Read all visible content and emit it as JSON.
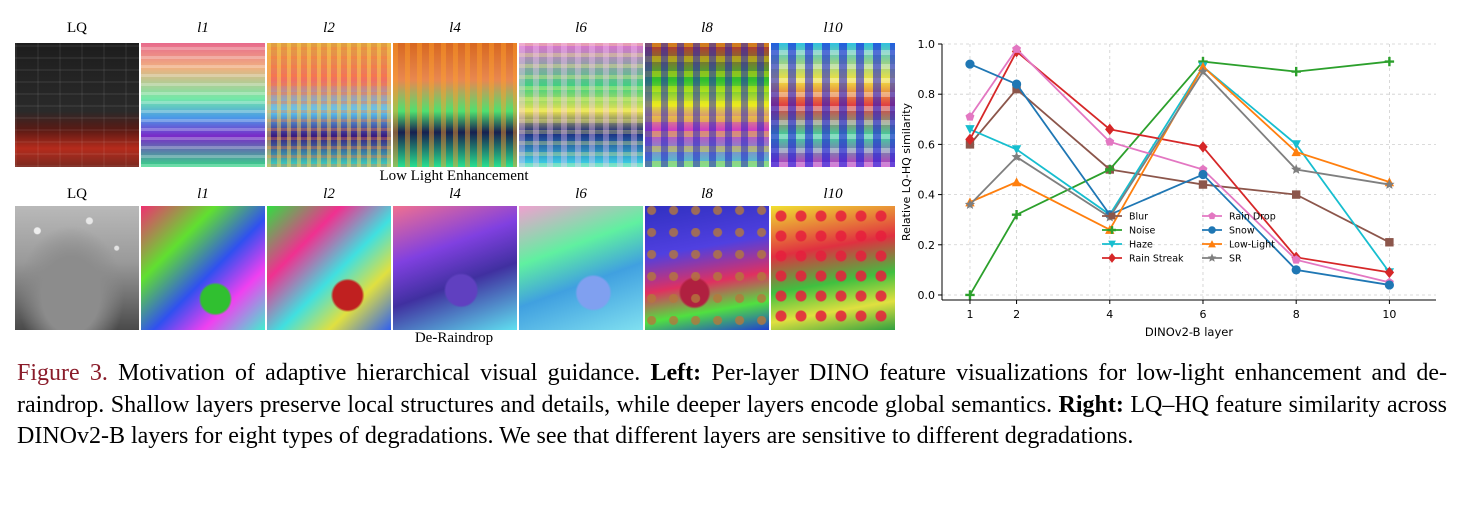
{
  "figure": {
    "rows": [
      {
        "column_labels": [
          "LQ",
          "l1",
          "l2",
          "l4",
          "l6",
          "l8",
          "l10"
        ],
        "task_label": "Low Light Enhancement"
      },
      {
        "column_labels": [
          "LQ",
          "l1",
          "l2",
          "l4",
          "l6",
          "l8",
          "l10"
        ],
        "task_label": "De-Raindrop"
      }
    ],
    "caption": {
      "figure_number": "Figure 3.",
      "text_1": " Motivation of adaptive hierarchical visual guidance. ",
      "left_label": "Left:",
      "text_2": " Per-layer DINO feature visualizations for low-light enhancement and de-raindrop. Shallow layers preserve local structures and details, while deeper layers encode global semantics. ",
      "right_label": "Right:",
      "text_3": " LQ–HQ feature similarity across DINOv2-B layers for eight types of degradations. We see that different layers are sensitive to different degradations."
    }
  },
  "chart_data": {
    "type": "line",
    "title": "",
    "xlabel": "DINOv2-B layer",
    "ylabel": "Relative LQ-HQ similarity",
    "x": [
      1,
      2,
      4,
      6,
      8,
      10
    ],
    "xlim": [
      0.4,
      11.0
    ],
    "ylim": [
      -0.02,
      1.0
    ],
    "xticks": [
      "1",
      "2",
      "4",
      "6",
      "8",
      "10"
    ],
    "yticks": [
      "0.0",
      "0.2",
      "0.4",
      "0.6",
      "0.8",
      "1.0"
    ],
    "grid": true,
    "legend_position": "lower-center",
    "series": [
      {
        "name": "Blur",
        "color": "#8c564b",
        "marker": "square",
        "values": [
          0.6,
          0.82,
          0.5,
          0.44,
          0.4,
          0.21
        ]
      },
      {
        "name": "Noise",
        "color": "#2ca02c",
        "marker": "plus",
        "values": [
          0.0,
          0.32,
          0.5,
          0.93,
          0.89,
          0.93
        ]
      },
      {
        "name": "Haze",
        "color": "#17becf",
        "marker": "triangle-down",
        "values": [
          0.66,
          0.58,
          0.32,
          0.91,
          0.6,
          0.09
        ]
      },
      {
        "name": "Rain Streak",
        "color": "#d62728",
        "marker": "diamond",
        "values": [
          0.62,
          0.97,
          0.66,
          0.59,
          0.15,
          0.09
        ]
      },
      {
        "name": "Rain Drop",
        "color": "#e377c2",
        "marker": "pentagon",
        "values": [
          0.71,
          0.98,
          0.61,
          0.5,
          0.14,
          0.05
        ]
      },
      {
        "name": "Snow",
        "color": "#1f77b4",
        "marker": "circle",
        "values": [
          0.92,
          0.84,
          0.32,
          0.48,
          0.1,
          0.04
        ]
      },
      {
        "name": "Low-Light",
        "color": "#ff7f0e",
        "marker": "triangle-up",
        "values": [
          0.37,
          0.45,
          0.26,
          0.91,
          0.57,
          0.45
        ]
      },
      {
        "name": "SR",
        "color": "#7f7f7f",
        "marker": "star",
        "values": [
          0.36,
          0.55,
          0.31,
          0.89,
          0.5,
          0.44
        ]
      }
    ]
  }
}
